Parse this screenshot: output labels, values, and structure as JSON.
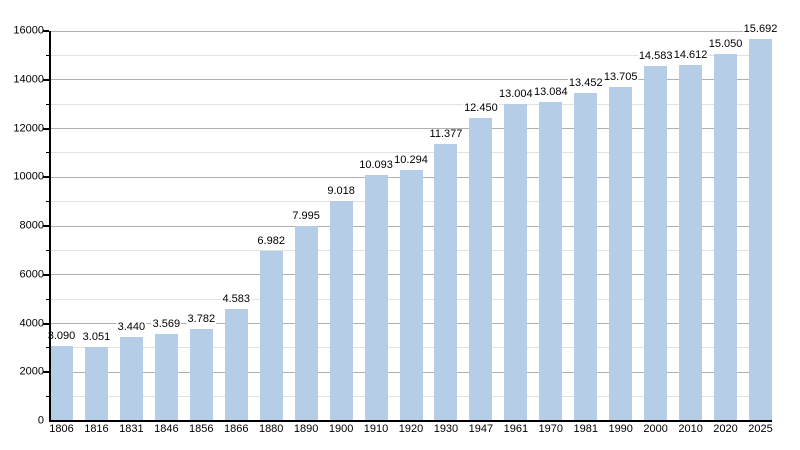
{
  "chart_data": {
    "type": "bar",
    "title": "",
    "xlabel": "",
    "ylabel": "",
    "categories": [
      "1806",
      "1816",
      "1831",
      "1846",
      "1856",
      "1866",
      "1880",
      "1890",
      "1900",
      "1910",
      "1920",
      "1930",
      "1947",
      "1961",
      "1970",
      "1981",
      "1990",
      "2000",
      "2010",
      "2020",
      "2025"
    ],
    "values": [
      3090,
      3051,
      3440,
      3569,
      3782,
      4583,
      6982,
      7995,
      9018,
      10093,
      10294,
      11377,
      12450,
      13004,
      13084,
      13452,
      13705,
      14583,
      14612,
      15050,
      15692
    ],
    "value_labels": [
      "3.090",
      "3.051",
      "3.440",
      "3.569",
      "3.782",
      "4.583",
      "6.982",
      "7.995",
      "9.018",
      "10.093",
      "10.294",
      "11.377",
      "12.450",
      "13.004",
      "13.084",
      "13.452",
      "13.705",
      "14.583",
      "14.612",
      "15.050",
      "15.692"
    ],
    "ylim": [
      0,
      16000
    ],
    "y_major_ticks": [
      0,
      2000,
      4000,
      6000,
      8000,
      10000,
      12000,
      14000,
      16000
    ],
    "y_major_tick_labels": [
      "0",
      "2000",
      "4000",
      "6000",
      "8000",
      "10000",
      "12000",
      "14000",
      "16000"
    ],
    "y_minor_step": 1000,
    "grid": "horizontal, minor lines every 1000, major lines every 2000",
    "legend": "none",
    "colors": {
      "bar": "#b5cde6",
      "major_grid": "#b0b0b0",
      "minor_grid": "#e2e2e2",
      "axis": "#000000",
      "background": "#ffffff",
      "text": "#000000"
    }
  }
}
